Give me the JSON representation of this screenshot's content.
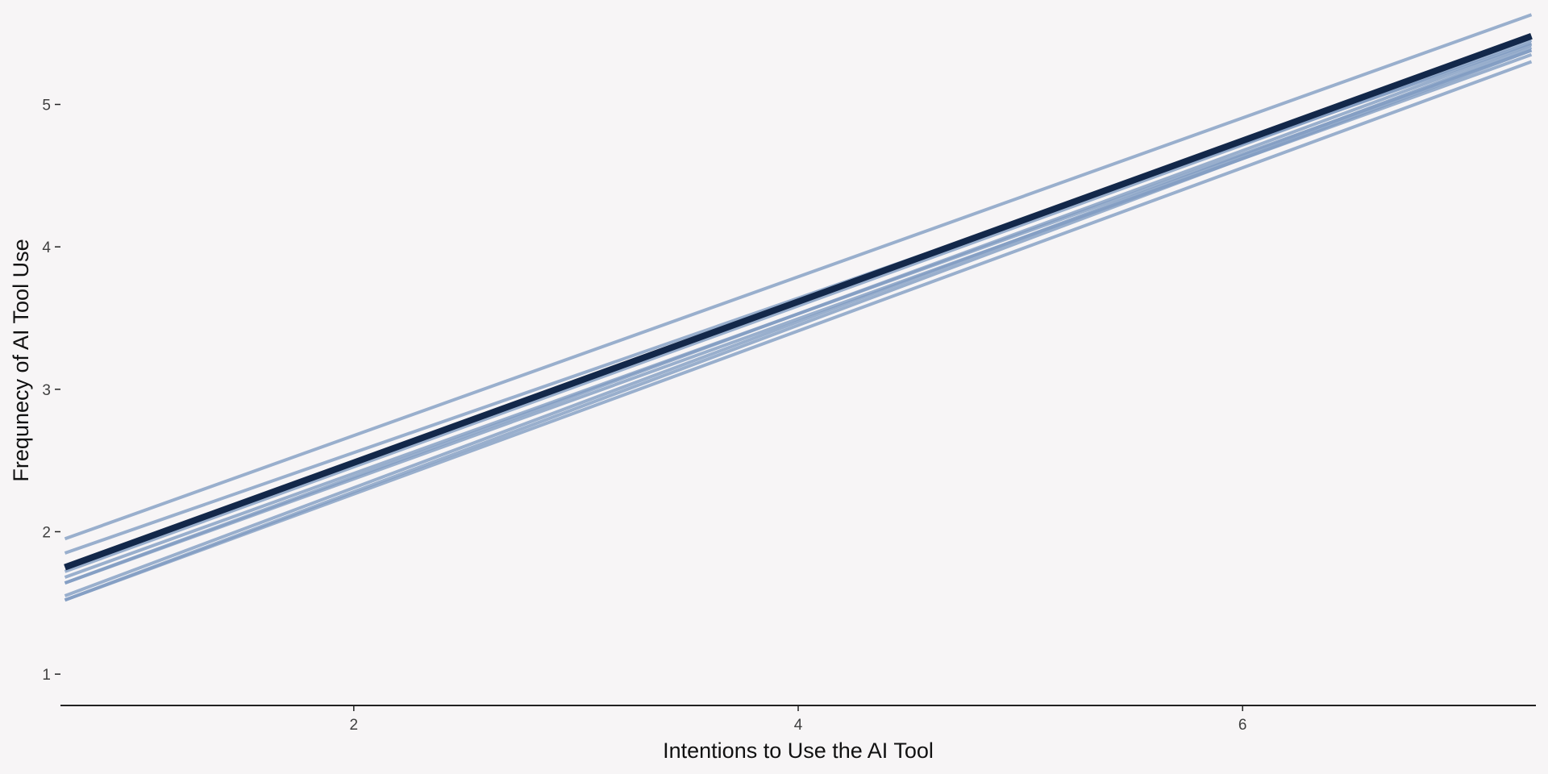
{
  "chart_data": {
    "type": "line",
    "title": "",
    "xlabel": "Intentions to Use the AI Tool",
    "ylabel": "Frequnecy of AI Tool Use",
    "xlim": [
      0.68,
      7.32
    ],
    "ylim": [
      0.78,
      5.62
    ],
    "x_ticks": [
      2,
      4,
      6
    ],
    "y_ticks": [
      1,
      2,
      3,
      4,
      5
    ],
    "grid": false,
    "legend": "none",
    "colors": {
      "background": "#f7f5f6",
      "sample_line": "#7f9bc2",
      "mean_line": "#13284a",
      "axis": "#222222"
    },
    "series": [
      {
        "x": [
          0.7,
          7.3
        ],
        "y": [
          1.95,
          5.63
        ],
        "role": "sample"
      },
      {
        "x": [
          0.7,
          7.3
        ],
        "y": [
          1.85,
          5.43
        ],
        "role": "sample"
      },
      {
        "x": [
          0.7,
          7.3
        ],
        "y": [
          1.72,
          5.45
        ],
        "role": "sample"
      },
      {
        "x": [
          0.7,
          7.3
        ],
        "y": [
          1.68,
          5.38
        ],
        "role": "sample"
      },
      {
        "x": [
          0.7,
          7.3
        ],
        "y": [
          1.64,
          5.42
        ],
        "role": "sample"
      },
      {
        "x": [
          0.7,
          7.3
        ],
        "y": [
          1.64,
          5.35
        ],
        "role": "sample"
      },
      {
        "x": [
          0.7,
          7.3
        ],
        "y": [
          1.55,
          5.4
        ],
        "role": "sample"
      },
      {
        "x": [
          0.7,
          7.3
        ],
        "y": [
          1.52,
          5.38
        ],
        "role": "sample"
      },
      {
        "x": [
          0.7,
          7.3
        ],
        "y": [
          1.52,
          5.3
        ],
        "role": "sample"
      },
      {
        "x": [
          0.7,
          7.3
        ],
        "y": [
          1.75,
          5.48
        ],
        "role": "mean"
      }
    ]
  }
}
